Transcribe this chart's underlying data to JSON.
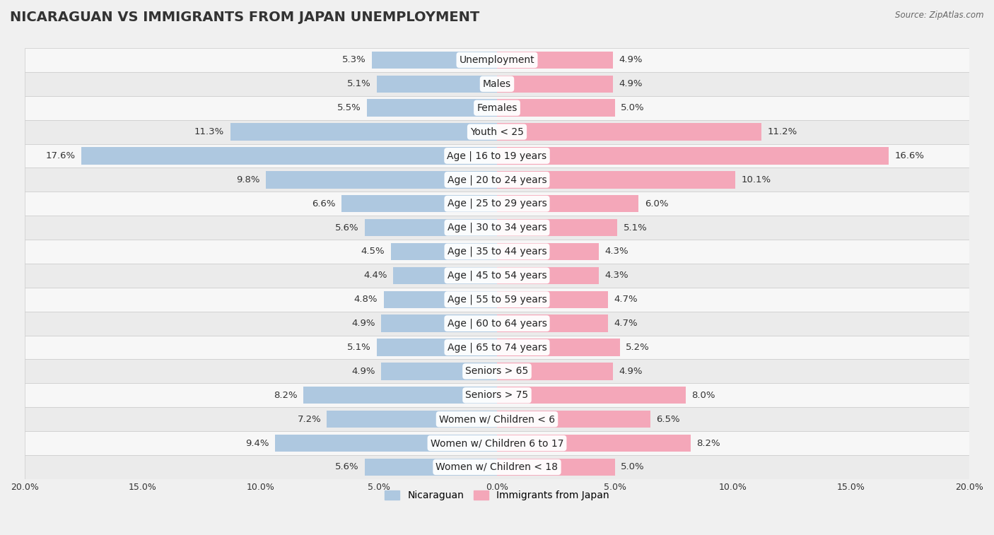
{
  "title": "NICARAGUAN VS IMMIGRANTS FROM JAPAN UNEMPLOYMENT",
  "source": "Source: ZipAtlas.com",
  "categories": [
    "Unemployment",
    "Males",
    "Females",
    "Youth < 25",
    "Age | 16 to 19 years",
    "Age | 20 to 24 years",
    "Age | 25 to 29 years",
    "Age | 30 to 34 years",
    "Age | 35 to 44 years",
    "Age | 45 to 54 years",
    "Age | 55 to 59 years",
    "Age | 60 to 64 years",
    "Age | 65 to 74 years",
    "Seniors > 65",
    "Seniors > 75",
    "Women w/ Children < 6",
    "Women w/ Children 6 to 17",
    "Women w/ Children < 18"
  ],
  "nicaraguan": [
    5.3,
    5.1,
    5.5,
    11.3,
    17.6,
    9.8,
    6.6,
    5.6,
    4.5,
    4.4,
    4.8,
    4.9,
    5.1,
    4.9,
    8.2,
    7.2,
    9.4,
    5.6
  ],
  "japan": [
    4.9,
    4.9,
    5.0,
    11.2,
    16.6,
    10.1,
    6.0,
    5.1,
    4.3,
    4.3,
    4.7,
    4.7,
    5.2,
    4.9,
    8.0,
    6.5,
    8.2,
    5.0
  ],
  "nicaraguan_color": "#aec8e0",
  "japan_color": "#f4a7b9",
  "bar_height": 0.72,
  "xlim": 20.0,
  "row_color_odd": "#f7f7f7",
  "row_color_even": "#ebebeb",
  "title_fontsize": 14,
  "label_fontsize": 10,
  "value_fontsize": 9.5,
  "tick_fontsize": 9
}
